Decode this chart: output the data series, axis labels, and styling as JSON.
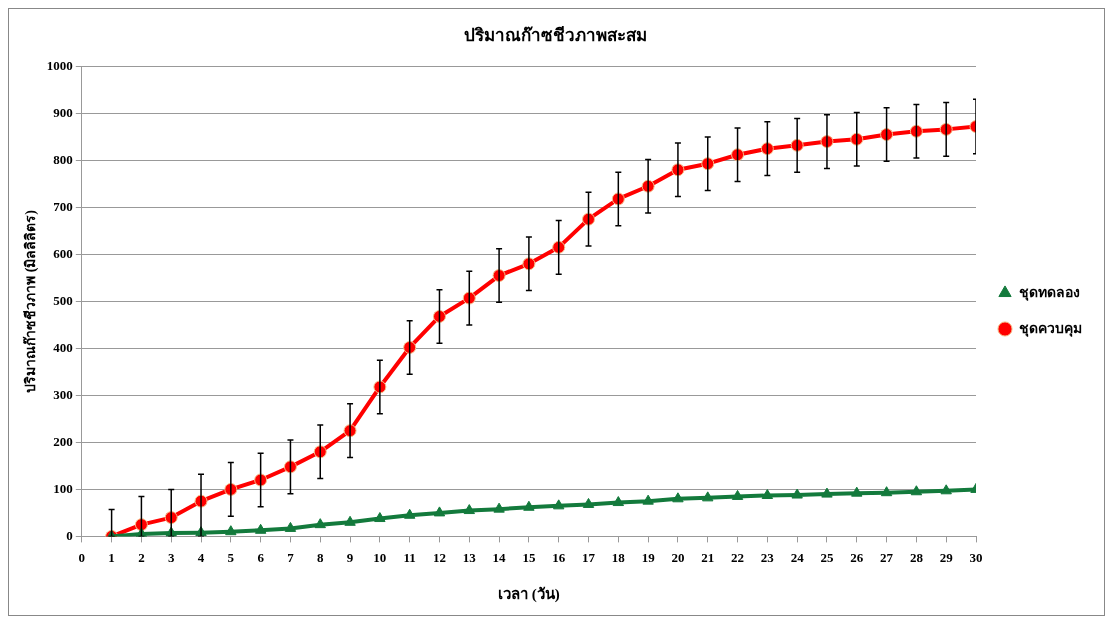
{
  "chart_data": {
    "type": "line",
    "title": "ปริมาณก๊าซชีวภาพสะสม",
    "xlabel": "เวลา (วัน)",
    "ylabel": "ปริมาณก๊าซชีวภาพ (มิลลิลิตร)",
    "x": [
      1,
      2,
      3,
      4,
      5,
      6,
      7,
      8,
      9,
      10,
      11,
      12,
      13,
      14,
      15,
      16,
      17,
      18,
      19,
      20,
      21,
      22,
      23,
      24,
      25,
      26,
      27,
      28,
      29,
      30
    ],
    "xlim": [
      0,
      30
    ],
    "xticks": [
      0,
      1,
      2,
      3,
      4,
      5,
      6,
      7,
      8,
      9,
      10,
      11,
      12,
      13,
      14,
      15,
      16,
      17,
      18,
      19,
      20,
      21,
      22,
      23,
      24,
      25,
      26,
      27,
      28,
      29,
      30
    ],
    "ylim": [
      0,
      1000
    ],
    "yticks": [
      0,
      100,
      200,
      300,
      400,
      500,
      600,
      700,
      800,
      900,
      1000
    ],
    "grid": "y",
    "legend": "right",
    "line_style": "solid",
    "series": [
      {
        "name": "ชุดทดลอง",
        "color": "#137a3c",
        "marker": "triangle",
        "values": [
          0,
          5,
          7,
          8,
          10,
          13,
          17,
          25,
          30,
          38,
          45,
          50,
          55,
          58,
          62,
          65,
          68,
          72,
          75,
          80,
          82,
          85,
          87,
          88,
          90,
          92,
          93,
          95,
          97,
          100
        ]
      },
      {
        "name": "ชุดควบคุม",
        "color": "#ff0000",
        "marker": "circle",
        "values": [
          0,
          25,
          40,
          75,
          100,
          120,
          148,
          180,
          225,
          318,
          402,
          468,
          507,
          555,
          580,
          615,
          675,
          718,
          745,
          780,
          793,
          812,
          825,
          832,
          840,
          845,
          855,
          862,
          866,
          872
        ],
        "errors": [
          [
            0,
            57
          ],
          [
            0,
            85
          ],
          [
            0,
            100
          ],
          [
            0,
            132
          ],
          57,
          57,
          57,
          57,
          57,
          57,
          57,
          57,
          57,
          57,
          57,
          57,
          57,
          57,
          57,
          57,
          57,
          57,
          57,
          57,
          57,
          57,
          57,
          57,
          57,
          58
        ]
      }
    ]
  }
}
